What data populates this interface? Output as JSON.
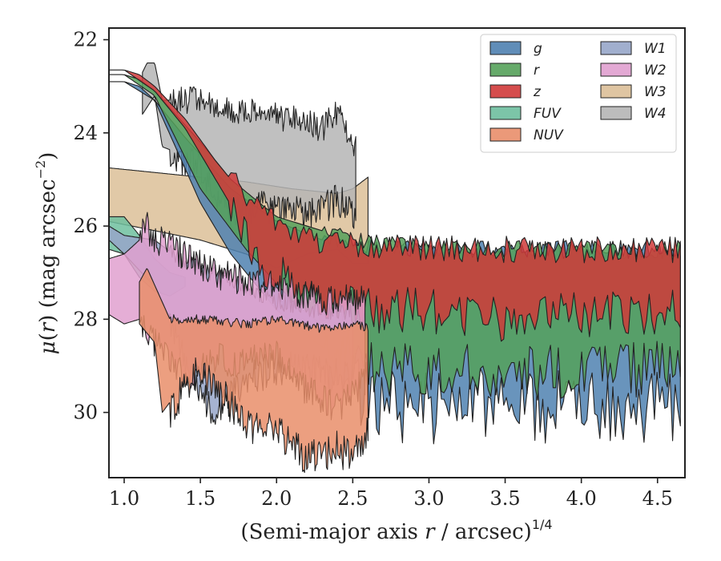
{
  "chart_data": {
    "type": "area",
    "xlabel_main": "(Semi-major axis ",
    "xlabel_r": "r",
    "xlabel_tail": " / arcsec)",
    "xlabel_sup": "1/4",
    "ylabel_mu": "μ",
    "ylabel_open": "(",
    "ylabel_r": "r",
    "ylabel_close": ") (mag arcsec",
    "ylabel_sup": "−2",
    "ylabel_end": ")",
    "xlim": [
      0.9,
      4.68
    ],
    "ylim": [
      31.4,
      21.75
    ],
    "y_inverted": true,
    "x_ticks": [
      1.0,
      1.5,
      2.0,
      2.5,
      3.0,
      3.5,
      4.0,
      4.5
    ],
    "x_tick_labels": [
      "1.0",
      "1.5",
      "2.0",
      "2.5",
      "3.0",
      "3.5",
      "4.0",
      "4.5"
    ],
    "y_ticks": [
      22,
      24,
      26,
      28,
      30
    ],
    "y_tick_labels": [
      "22",
      "24",
      "26",
      "28",
      "30"
    ],
    "grid": false,
    "legend_position": "top-right",
    "legend_columns": 2,
    "series": [
      {
        "name": "g",
        "color": "#4f81b0",
        "x_range": [
          0.9,
          4.65
        ],
        "upper_anchors": [
          [
            0.9,
            22.9
          ],
          [
            1.0,
            22.9
          ],
          [
            1.1,
            23.0
          ],
          [
            1.2,
            23.3
          ],
          [
            1.4,
            24.1
          ],
          [
            1.7,
            25.2
          ],
          [
            2.0,
            25.9
          ],
          [
            2.3,
            26.3
          ],
          [
            2.6,
            26.4
          ],
          [
            2.8,
            26.5
          ],
          [
            3.5,
            26.5
          ],
          [
            4.0,
            26.5
          ],
          [
            4.65,
            26.5
          ]
        ],
        "lower_anchors": [
          [
            0.9,
            22.9
          ],
          [
            1.0,
            22.9
          ],
          [
            1.2,
            23.3
          ],
          [
            1.5,
            25.5
          ],
          [
            1.7,
            26.6
          ],
          [
            2.0,
            27.8
          ],
          [
            2.3,
            28.6
          ],
          [
            2.5,
            29.2
          ],
          [
            2.7,
            29.5
          ],
          [
            3.0,
            29.6
          ],
          [
            3.5,
            29.5
          ],
          [
            4.0,
            29.6
          ],
          [
            4.65,
            29.5
          ]
        ],
        "jitter_x_from": 2.3,
        "lower_amp": 0.8,
        "upper_amp": 0.2,
        "seed": 11
      },
      {
        "name": "r",
        "color": "#55a15a",
        "x_range": [
          0.9,
          4.65
        ],
        "upper_anchors": [
          [
            0.9,
            22.75
          ],
          [
            1.0,
            22.75
          ],
          [
            1.1,
            22.85
          ],
          [
            1.2,
            23.1
          ],
          [
            1.5,
            24.2
          ],
          [
            1.7,
            25.0
          ],
          [
            2.0,
            25.8
          ],
          [
            2.5,
            26.3
          ],
          [
            3.0,
            26.5
          ],
          [
            4.0,
            26.5
          ],
          [
            4.65,
            26.5
          ]
        ],
        "lower_anchors": [
          [
            0.9,
            22.75
          ],
          [
            1.0,
            22.75
          ],
          [
            1.2,
            23.2
          ],
          [
            1.5,
            25.2
          ],
          [
            1.8,
            26.5
          ],
          [
            2.1,
            27.6
          ],
          [
            2.4,
            28.4
          ],
          [
            2.7,
            28.9
          ],
          [
            3.0,
            28.8
          ],
          [
            3.5,
            28.9
          ],
          [
            4.0,
            28.9
          ],
          [
            4.65,
            28.8
          ]
        ],
        "jitter_x_from": 2.3,
        "lower_amp": 0.6,
        "upper_amp": 0.2,
        "seed": 23
      },
      {
        "name": "z",
        "color": "#d03a3a",
        "x_range": [
          0.9,
          4.65
        ],
        "upper_anchors": [
          [
            0.9,
            22.65
          ],
          [
            1.0,
            22.65
          ],
          [
            1.1,
            22.75
          ],
          [
            1.2,
            23.0
          ],
          [
            1.4,
            23.7
          ],
          [
            1.6,
            24.6
          ],
          [
            1.8,
            25.4
          ],
          [
            2.0,
            26.0
          ],
          [
            2.3,
            26.4
          ],
          [
            2.6,
            26.4
          ],
          [
            3.0,
            26.5
          ],
          [
            3.5,
            26.5
          ],
          [
            4.0,
            26.5
          ],
          [
            4.65,
            26.5
          ]
        ],
        "lower_anchors": [
          [
            0.9,
            22.65
          ],
          [
            1.0,
            22.65
          ],
          [
            1.2,
            23.1
          ],
          [
            1.4,
            23.9
          ],
          [
            1.6,
            25.0
          ],
          [
            1.8,
            26.1
          ],
          [
            2.0,
            26.9
          ],
          [
            2.3,
            27.4
          ],
          [
            2.6,
            27.6
          ],
          [
            3.0,
            27.6
          ],
          [
            3.5,
            27.8
          ],
          [
            4.0,
            27.7
          ],
          [
            4.65,
            27.6
          ]
        ],
        "jitter_x_from": 1.7,
        "lower_amp": 0.5,
        "upper_amp": 0.3,
        "seed": 37
      },
      {
        "name": "FUV",
        "color": "#6ebf9f",
        "x_range": [
          0.9,
          1.4
        ],
        "upper_anchors": [
          [
            0.9,
            25.8
          ],
          [
            1.0,
            25.8
          ],
          [
            1.1,
            26.2
          ],
          [
            1.2,
            26.7
          ],
          [
            1.3,
            27.0
          ],
          [
            1.4,
            27.1
          ]
        ],
        "lower_anchors": [
          [
            0.9,
            26.5
          ],
          [
            1.0,
            26.6
          ],
          [
            1.1,
            27.1
          ],
          [
            1.2,
            27.4
          ],
          [
            1.3,
            27.5
          ],
          [
            1.4,
            27.3
          ]
        ],
        "jitter_x_from": 9.0,
        "lower_amp": 0.0,
        "upper_amp": 0.0,
        "seed": 5
      },
      {
        "name": "NUV",
        "color": "#e98e6a",
        "x_range": [
          1.1,
          2.6
        ],
        "upper_anchors": [
          [
            1.1,
            27.2
          ],
          [
            1.15,
            26.9
          ],
          [
            1.3,
            28.0
          ],
          [
            1.5,
            28.0
          ],
          [
            1.8,
            28.1
          ],
          [
            2.0,
            28.0
          ],
          [
            2.3,
            28.2
          ],
          [
            2.5,
            28.1
          ],
          [
            2.6,
            28.2
          ]
        ],
        "lower_anchors": [
          [
            1.1,
            28.1
          ],
          [
            1.2,
            28.5
          ],
          [
            1.25,
            30.0
          ],
          [
            1.5,
            28.9
          ],
          [
            1.8,
            30.1
          ],
          [
            2.0,
            30.2
          ],
          [
            2.2,
            30.8
          ],
          [
            2.4,
            30.6
          ],
          [
            2.5,
            30.9
          ],
          [
            2.6,
            30.1
          ]
        ],
        "jitter_x_from": 1.3,
        "lower_amp": 0.4,
        "upper_amp": 0.1,
        "seed": 41
      },
      {
        "name": "W1",
        "color": "#97a6c9",
        "x_range": [
          0.9,
          2.5
        ],
        "upper_anchors": [
          [
            0.9,
            26.0
          ],
          [
            1.0,
            26.2
          ],
          [
            1.2,
            26.3
          ],
          [
            1.4,
            26.8
          ],
          [
            1.6,
            27.0
          ],
          [
            1.8,
            27.3
          ],
          [
            2.0,
            27.6
          ],
          [
            2.3,
            27.8
          ],
          [
            2.5,
            27.9
          ]
        ],
        "lower_anchors": [
          [
            0.9,
            26.3
          ],
          [
            1.0,
            26.6
          ],
          [
            1.2,
            27.3
          ],
          [
            1.4,
            28.8
          ],
          [
            1.6,
            29.9
          ],
          [
            1.8,
            29.1
          ],
          [
            2.0,
            28.9
          ],
          [
            2.3,
            29.0
          ],
          [
            2.5,
            29.1
          ]
        ],
        "jitter_x_from": 1.3,
        "lower_amp": 0.4,
        "upper_amp": 0.2,
        "seed": 53
      },
      {
        "name": "W2",
        "color": "#e0a0cf",
        "x_range": [
          0.9,
          2.58
        ],
        "upper_anchors": [
          [
            0.9,
            26.7
          ],
          [
            1.0,
            26.6
          ],
          [
            1.1,
            26.3
          ],
          [
            1.15,
            26.0
          ],
          [
            1.2,
            26.3
          ],
          [
            1.4,
            26.6
          ],
          [
            1.6,
            27.0
          ],
          [
            1.8,
            27.2
          ],
          [
            2.0,
            27.2
          ],
          [
            2.2,
            27.5
          ],
          [
            2.4,
            27.6
          ],
          [
            2.58,
            27.6
          ]
        ],
        "lower_anchors": [
          [
            0.9,
            27.9
          ],
          [
            1.0,
            28.1
          ],
          [
            1.1,
            28.0
          ],
          [
            1.2,
            28.4
          ],
          [
            1.4,
            29.1
          ],
          [
            1.6,
            28.7
          ],
          [
            1.8,
            28.8
          ],
          [
            2.0,
            28.6
          ],
          [
            2.2,
            29.4
          ],
          [
            2.4,
            29.8
          ],
          [
            2.58,
            29.2
          ]
        ],
        "jitter_x_from": 1.1,
        "lower_amp": 0.35,
        "upper_amp": 0.35,
        "seed": 67
      },
      {
        "name": "W3",
        "color": "#dcbf98",
        "x_range": [
          0.9,
          2.6
        ],
        "upper_anchors": [
          [
            0.9,
            24.75
          ],
          [
            1.2,
            24.85
          ],
          [
            1.5,
            24.95
          ],
          [
            1.8,
            25.05
          ],
          [
            2.1,
            25.2
          ],
          [
            2.4,
            25.3
          ],
          [
            2.5,
            25.2
          ],
          [
            2.6,
            24.95
          ]
        ],
        "lower_anchors": [
          [
            0.9,
            25.9
          ],
          [
            1.2,
            26.1
          ],
          [
            1.5,
            26.3
          ],
          [
            1.8,
            26.6
          ],
          [
            2.0,
            26.9
          ],
          [
            2.2,
            26.6
          ],
          [
            2.4,
            26.5
          ],
          [
            2.5,
            26.8
          ],
          [
            2.6,
            26.8
          ]
        ],
        "jitter_x_from": 9.0,
        "lower_amp": 0.0,
        "upper_amp": 0.0,
        "seed": 71
      },
      {
        "name": "W4",
        "color": "#b5b5b5",
        "x_range": [
          1.12,
          2.52
        ],
        "upper_anchors": [
          [
            1.12,
            22.7
          ],
          [
            1.15,
            22.5
          ],
          [
            1.2,
            22.5
          ],
          [
            1.25,
            23.3
          ],
          [
            1.5,
            23.3
          ],
          [
            1.7,
            23.5
          ],
          [
            1.9,
            23.6
          ],
          [
            2.1,
            23.7
          ],
          [
            2.3,
            23.9
          ],
          [
            2.4,
            23.5
          ],
          [
            2.5,
            24.2
          ],
          [
            2.52,
            24.3
          ]
        ],
        "lower_anchors": [
          [
            1.12,
            23.6
          ],
          [
            1.2,
            23.2
          ],
          [
            1.25,
            24.3
          ],
          [
            1.5,
            24.6
          ],
          [
            1.6,
            25.2
          ],
          [
            1.7,
            25.6
          ],
          [
            1.9,
            25.4
          ],
          [
            2.0,
            25.5
          ],
          [
            2.2,
            25.6
          ],
          [
            2.3,
            25.5
          ],
          [
            2.4,
            25.3
          ],
          [
            2.52,
            25.6
          ]
        ],
        "jitter_x_from": 1.3,
        "lower_amp": 0.35,
        "upper_amp": 0.3,
        "seed": 83
      }
    ],
    "draw_order": [
      "W3",
      "W4",
      "g",
      "r",
      "z",
      "FUV",
      "W1",
      "W2",
      "NUV"
    ]
  }
}
